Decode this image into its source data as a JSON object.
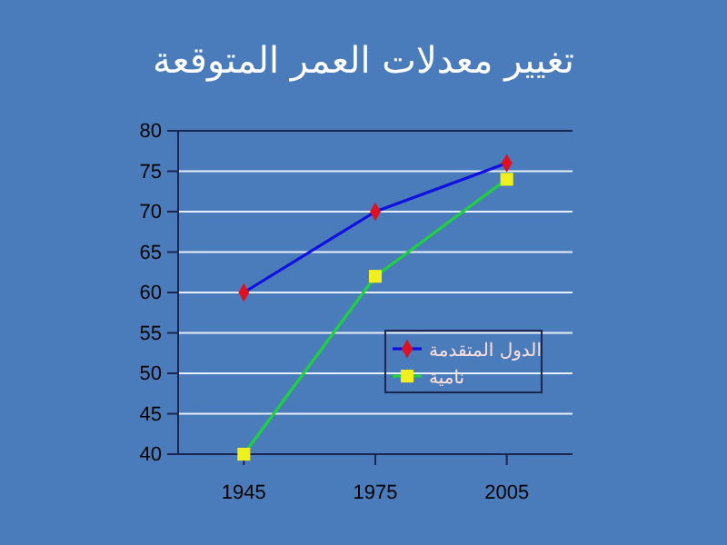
{
  "chart_data": {
    "type": "line",
    "title": "تغيير معدلات العمر المتوقعة",
    "categories": [
      "1945",
      "1975",
      "2005"
    ],
    "series": [
      {
        "name": "الدول المتقدمة",
        "color": "#1010e0",
        "marker": "diamond",
        "values": [
          60,
          70,
          76
        ]
      },
      {
        "name": "نامية",
        "color": "#20d040",
        "marker": "square",
        "values": [
          40,
          62,
          74
        ]
      }
    ],
    "ylim": [
      40,
      80
    ],
    "yticks": [
      40,
      45,
      50,
      55,
      60,
      65,
      70,
      75,
      80
    ],
    "grid": "y",
    "legend": "right"
  }
}
